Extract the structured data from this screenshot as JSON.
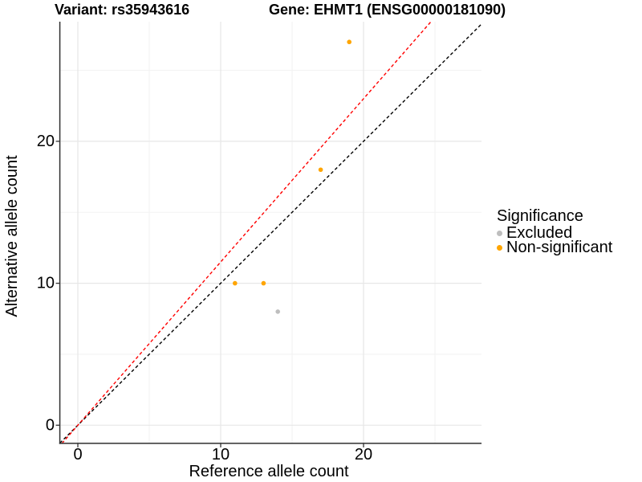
{
  "titles": {
    "variant": "Variant: rs35943616",
    "gene": "Gene: EHMT1 (ENSG00000181090)"
  },
  "chart_data": {
    "type": "scatter",
    "xlabel": "Reference allele count",
    "ylabel": "Alternative allele count",
    "xlim": [
      -1.26,
      28.26
    ],
    "ylim": [
      -1.28,
      28.43
    ],
    "x_ticks": [
      0,
      10,
      20
    ],
    "y_ticks": [
      0,
      10,
      20
    ],
    "x_minor_gridlines": [
      5,
      15,
      25
    ],
    "y_minor_gridlines": [
      5,
      15,
      25
    ],
    "grid": "on",
    "legend_position": "right",
    "series": [
      {
        "name": "Excluded",
        "color": "#BEBEBE",
        "points": [
          {
            "x": 14,
            "y": 8
          }
        ]
      },
      {
        "name": "Non-significant",
        "color": "#FFA500",
        "points": [
          {
            "x": 11,
            "y": 10
          },
          {
            "x": 13,
            "y": 10
          },
          {
            "x": 17,
            "y": 18
          },
          {
            "x": 19,
            "y": 27
          }
        ]
      }
    ],
    "lines": [
      {
        "name": "identity-line",
        "slope": 1.0,
        "intercept": 0,
        "color": "#000000",
        "style": "dashed"
      },
      {
        "name": "expected-ratio-line",
        "slope": 1.15,
        "intercept": 0,
        "color": "#FF0000",
        "style": "dashed"
      }
    ]
  },
  "legend": {
    "title": "Significance",
    "items": [
      {
        "label": "Excluded",
        "color": "#BEBEBE"
      },
      {
        "label": "Non-significant",
        "color": "#FFA500"
      }
    ]
  },
  "style_colors": {
    "major_grid": "#E7E7E7",
    "minor_grid": "#F2F2F2",
    "axis_line": "#2F2F2F",
    "tick_mark": "#333333",
    "text": "#000000"
  }
}
